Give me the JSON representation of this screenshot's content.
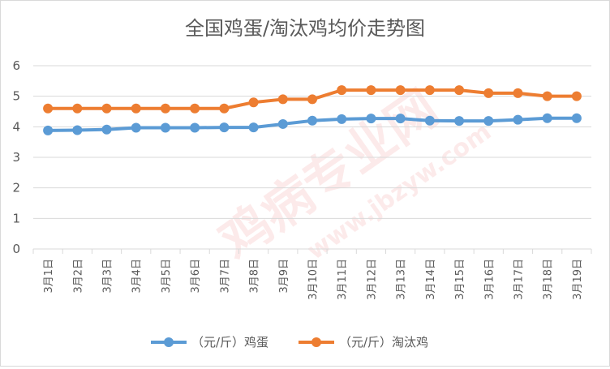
{
  "chart_data": {
    "type": "line",
    "title": "全国鸡蛋/淘汰鸡均价走势图",
    "xlabel": "",
    "ylabel": "",
    "ylim": [
      0,
      6
    ],
    "yticks": [
      "0",
      "1",
      "2",
      "3",
      "4",
      "5",
      "6"
    ],
    "grid": true,
    "legend_position": "bottom",
    "categories": [
      "3月1日",
      "3月2日",
      "3月3日",
      "3月4日",
      "3月5日",
      "3月6日",
      "3月7日",
      "3月8日",
      "3月9日",
      "3月10日",
      "3月11日",
      "3月12日",
      "3月13日",
      "3月14日",
      "3月15日",
      "3月16日",
      "3月17日",
      "3月18日",
      "3月19日"
    ],
    "series": [
      {
        "name": "（元/斤）鸡蛋",
        "color": "#5b9bd5",
        "values": [
          3.88,
          3.89,
          3.91,
          3.97,
          3.97,
          3.97,
          3.98,
          3.98,
          4.09,
          4.2,
          4.25,
          4.27,
          4.27,
          4.2,
          4.19,
          4.19,
          4.23,
          4.28,
          4.28
        ]
      },
      {
        "name": "（元/斤）淘汰鸡",
        "color": "#ed7d31",
        "values": [
          4.6,
          4.6,
          4.6,
          4.6,
          4.6,
          4.6,
          4.6,
          4.8,
          4.9,
          4.9,
          5.2,
          5.2,
          5.2,
          5.2,
          5.2,
          5.1,
          5.1,
          5.0,
          5.0
        ]
      }
    ]
  }
}
